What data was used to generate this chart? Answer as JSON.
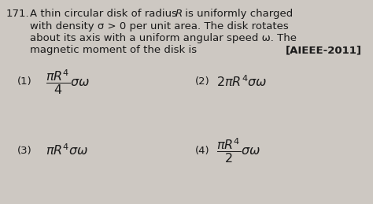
{
  "background_color": "#cdc8c2",
  "text_color": "#1a1a1a",
  "q_num": "171.",
  "line1": "A thin circular disk of radius ",
  "line1_R": "R",
  "line1_end": " is uniformly charged",
  "line2": "with density σ > 0 per unit area. The disk rotates",
  "line3": "about its axis with a uniform angular speed ω. The",
  "line4_start": "magnetic moment of the disk is",
  "line4_end": "[AIEEE-2011]",
  "opt1_num": "(1)",
  "opt1_formula": "$\\dfrac{\\pi R^4}{4}\\sigma\\omega$",
  "opt2_num": "(2)",
  "opt2_formula": "$2\\pi R^4\\sigma\\omega$",
  "opt3_num": "(3)",
  "opt3_formula": "$\\pi R^4\\sigma\\omega$",
  "opt4_num": "(4)",
  "opt4_formula": "$\\dfrac{\\pi R^4}{2}\\sigma\\omega$",
  "font_size_text": 9.5,
  "font_size_opt_num": 9.5,
  "font_size_formula": 11.5
}
